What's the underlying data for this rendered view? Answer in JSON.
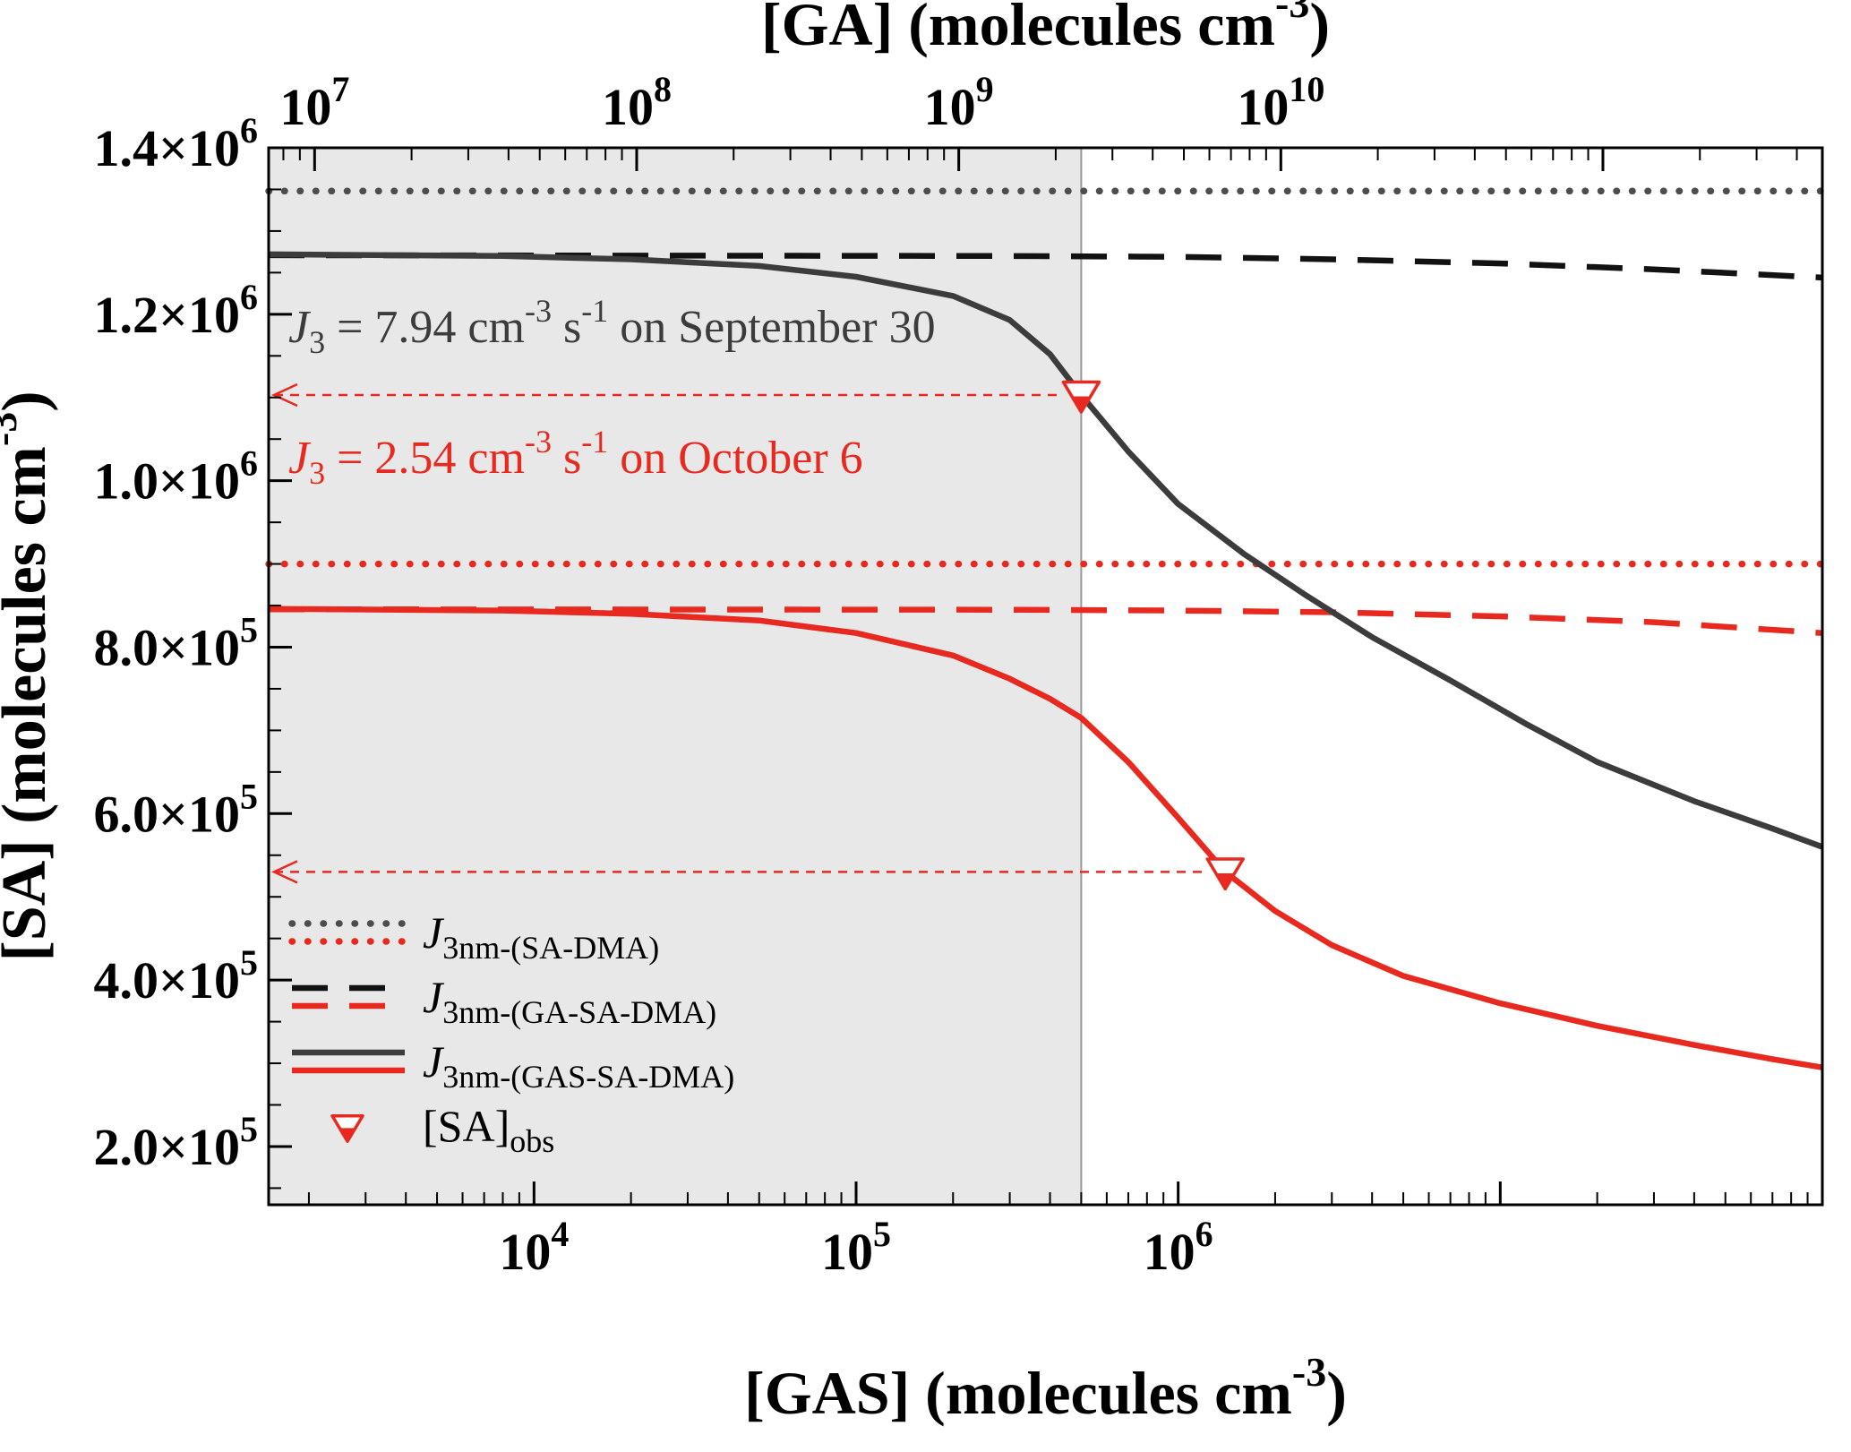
{
  "figure": {
    "background": "#ffffff"
  },
  "chart_data": {
    "type": "line",
    "x_bottom": {
      "scale": "log",
      "min": 1500,
      "max": 100000000,
      "title_parts": [
        {
          "t": "[GAS] (molecules cm"
        },
        {
          "t": "-3",
          "pos": "sup"
        },
        {
          "t": ")"
        }
      ],
      "labeled_ticks": [
        {
          "value": 10000,
          "mantissa": "10",
          "exp": "4"
        },
        {
          "value": 100000,
          "mantissa": "10",
          "exp": "5"
        },
        {
          "value": 1000000,
          "mantissa": "10",
          "exp": "6"
        }
      ]
    },
    "x_top": {
      "scale": "log",
      "min": 7200000,
      "max": 480000000000,
      "title_parts": [
        {
          "t": "[GA] (molecules cm"
        },
        {
          "t": "-3",
          "pos": "sup"
        },
        {
          "t": ")"
        }
      ],
      "labeled_ticks": [
        {
          "value": 10000000,
          "mantissa": "10",
          "exp": "7"
        },
        {
          "value": 100000000,
          "mantissa": "10",
          "exp": "8"
        },
        {
          "value": 1000000000,
          "mantissa": "10",
          "exp": "9"
        },
        {
          "value": 10000000000,
          "mantissa": "10",
          "exp": "10"
        }
      ]
    },
    "y_left": {
      "scale": "linear",
      "min": 130000,
      "max": 1400000,
      "minor_step": 50000,
      "major_step": 200000,
      "title_parts": [
        {
          "t": "[SA] (molecules cm"
        },
        {
          "t": "-3",
          "pos": "sup"
        },
        {
          "t": ")"
        }
      ],
      "labeled_ticks": [
        {
          "value": 200000,
          "mantissa": "2.0×10",
          "exp": "5"
        },
        {
          "value": 400000,
          "mantissa": "4.0×10",
          "exp": "5"
        },
        {
          "value": 600000,
          "mantissa": "6.0×10",
          "exp": "5"
        },
        {
          "value": 800000,
          "mantissa": "8.0×10",
          "exp": "5"
        },
        {
          "value": 1000000,
          "mantissa": "1.0×10",
          "exp": "6"
        },
        {
          "value": 1200000,
          "mantissa": "1.2×10",
          "exp": "6"
        },
        {
          "value": 1400000,
          "mantissa": "1.4×10",
          "exp": "6"
        }
      ]
    },
    "shaded_region": {
      "x_start": 1500,
      "x_end": 500000,
      "fill": "#e8e8e8",
      "edge_color": "#999999"
    },
    "marker_color": "#e8291f",
    "series": [
      {
        "id": "J3nm-SA-DMA-sep30",
        "style": "dotted",
        "color": "#4d4d4d",
        "points": [
          [
            1500,
            1348000
          ],
          [
            100000000,
            1348000
          ]
        ]
      },
      {
        "id": "J3nm-GA-SA-DMA-sep30",
        "style": "dashed",
        "color": "#121212",
        "points": [
          [
            1500,
            1271000
          ],
          [
            300000,
            1270000
          ],
          [
            1000000,
            1269000
          ],
          [
            3000000,
            1266000
          ],
          [
            10000000,
            1261000
          ],
          [
            30000000,
            1254000
          ],
          [
            100000000,
            1244000
          ]
        ]
      },
      {
        "id": "J3nm-SA-DMA-oct6",
        "style": "dotted",
        "color": "#e8291f",
        "points": [
          [
            1500,
            900000
          ],
          [
            100000000,
            900000
          ]
        ]
      },
      {
        "id": "J3nm-GA-SA-DMA-oct6",
        "style": "dashed",
        "color": "#e8291f",
        "points": [
          [
            1500,
            845500
          ],
          [
            300000,
            845000
          ],
          [
            1000000,
            844000
          ],
          [
            3000000,
            842000
          ],
          [
            10000000,
            837000
          ],
          [
            30000000,
            830000
          ],
          [
            100000000,
            817000
          ]
        ]
      },
      {
        "id": "J3nm-GAS-SA-DMA-sep30",
        "style": "solid",
        "color": "#3c3c3c",
        "points": [
          [
            1500,
            1272000
          ],
          [
            8000,
            1270000
          ],
          [
            20000,
            1266000
          ],
          [
            50000,
            1258000
          ],
          [
            100000,
            1245000
          ],
          [
            200000,
            1222000
          ],
          [
            300000,
            1193000
          ],
          [
            400000,
            1152000
          ],
          [
            500000,
            1103000
          ],
          [
            700000,
            1035000
          ],
          [
            1000000,
            972000
          ],
          [
            1600000,
            912000
          ],
          [
            2500000,
            862000
          ],
          [
            4000000,
            812000
          ],
          [
            7000000,
            760000
          ],
          [
            12000000,
            708000
          ],
          [
            20000000,
            662000
          ],
          [
            40000000,
            615000
          ],
          [
            70000000,
            582000
          ],
          [
            100000000,
            560000
          ]
        ]
      },
      {
        "id": "J3nm-GAS-SA-DMA-oct6",
        "style": "solid",
        "color": "#e8291f",
        "points": [
          [
            1500,
            846000
          ],
          [
            8000,
            844000
          ],
          [
            20000,
            840000
          ],
          [
            50000,
            832000
          ],
          [
            100000,
            817000
          ],
          [
            200000,
            790000
          ],
          [
            300000,
            762000
          ],
          [
            400000,
            738000
          ],
          [
            500000,
            715000
          ],
          [
            700000,
            662000
          ],
          [
            1000000,
            595000
          ],
          [
            1400000,
            530000
          ],
          [
            2000000,
            483000
          ],
          [
            3000000,
            442000
          ],
          [
            5000000,
            405000
          ],
          [
            10000000,
            372000
          ],
          [
            20000000,
            345000
          ],
          [
            40000000,
            322000
          ],
          [
            70000000,
            305000
          ],
          [
            100000000,
            295000
          ]
        ]
      }
    ],
    "markers": [
      {
        "x": 500000,
        "y": 1103000,
        "series": "J3nm-GAS-SA-DMA-sep30"
      },
      {
        "x": 1400000,
        "y": 530000,
        "series": "J3nm-GAS-SA-DMA-oct6"
      }
    ],
    "arrows": [
      {
        "y": 1103000,
        "x_to": 500000
      },
      {
        "y": 530000,
        "x_to": 1400000
      }
    ],
    "annotations": [
      {
        "id": "sep30",
        "color": "#3c3c3c",
        "parts": [
          {
            "t": "J",
            "style": "italic"
          },
          {
            "t": "3",
            "pos": "sub"
          },
          {
            "t": " = 7.94 cm"
          },
          {
            "t": "-3",
            "pos": "sup"
          },
          {
            "t": " s"
          },
          {
            "t": "-1",
            "pos": "sup"
          },
          {
            "t": " on September 30"
          }
        ]
      },
      {
        "id": "oct6",
        "color": "#e8291f",
        "parts": [
          {
            "t": "J",
            "style": "italic"
          },
          {
            "t": "3",
            "pos": "sub"
          },
          {
            "t": " = 2.54 cm"
          },
          {
            "t": "-3",
            "pos": "sup"
          },
          {
            "t": " s"
          },
          {
            "t": "-1",
            "pos": "sup"
          },
          {
            "t": " on October 6"
          }
        ]
      }
    ],
    "legend": {
      "items": [
        {
          "line_style": "dotted",
          "colors": [
            "#4d4d4d",
            "#e8291f"
          ],
          "label_parts": [
            {
              "t": "J",
              "style": "italic"
            },
            {
              "t": "3nm-(SA-DMA)",
              "pos": "sub"
            }
          ]
        },
        {
          "line_style": "dashed",
          "colors": [
            "#121212",
            "#e8291f"
          ],
          "label_parts": [
            {
              "t": "J",
              "style": "italic"
            },
            {
              "t": "3nm-(GA-SA-DMA)",
              "pos": "sub"
            }
          ]
        },
        {
          "line_style": "solid",
          "colors": [
            "#3c3c3c",
            "#e8291f"
          ],
          "label_parts": [
            {
              "t": "J",
              "style": "italic"
            },
            {
              "t": "3nm-(GAS-SA-DMA)",
              "pos": "sub"
            }
          ]
        },
        {
          "marker": true,
          "label_parts": [
            {
              "t": "[SA]"
            },
            {
              "t": "obs",
              "pos": "sub"
            }
          ]
        }
      ]
    }
  }
}
